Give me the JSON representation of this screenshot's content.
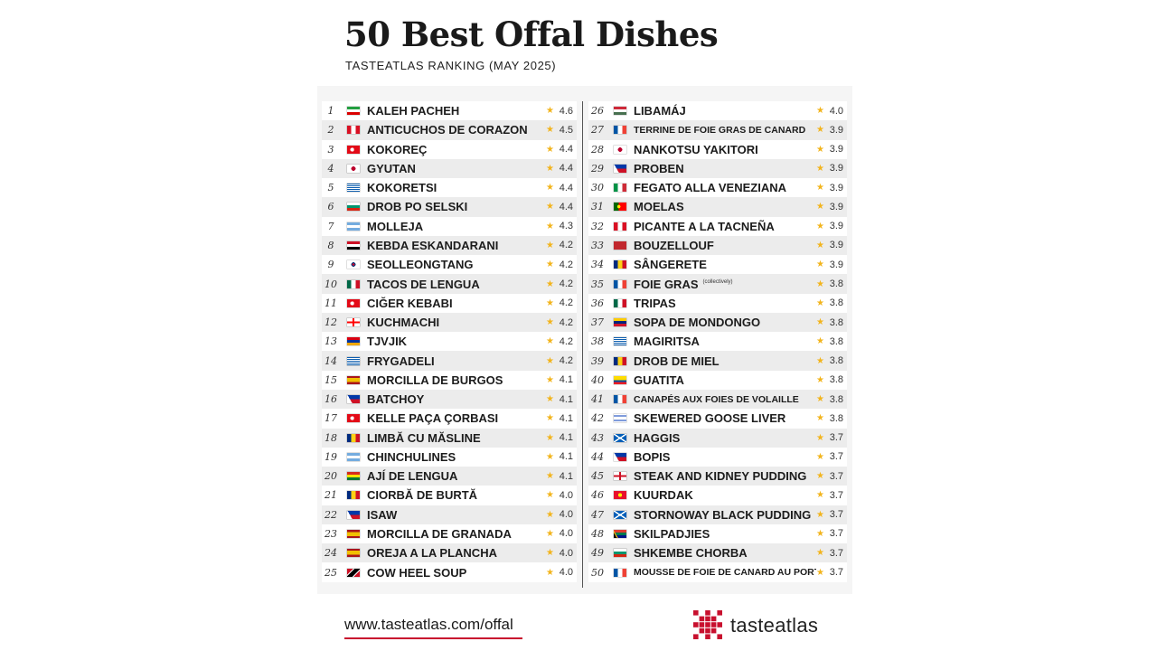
{
  "header": {
    "title": "50 Best Offal Dishes",
    "subtitle": "TASTEATLAS RANKING (MAY 2025)"
  },
  "colors": {
    "star": "#f2b41c",
    "accent": "#c8102e"
  },
  "dishes": [
    {
      "rank": "1",
      "name": "KALEH PACHEH",
      "rating": "4.6",
      "flag": "iran"
    },
    {
      "rank": "2",
      "name": "ANTICUCHOS DE CORAZON",
      "rating": "4.5",
      "flag": "peru"
    },
    {
      "rank": "3",
      "name": "KOKOREÇ",
      "rating": "4.4",
      "flag": "turkey"
    },
    {
      "rank": "4",
      "name": "GYUTAN",
      "rating": "4.4",
      "flag": "japan"
    },
    {
      "rank": "5",
      "name": "KOKORETSI",
      "rating": "4.4",
      "flag": "greece"
    },
    {
      "rank": "6",
      "name": "DROB PO SELSKI",
      "rating": "4.4",
      "flag": "bulgaria"
    },
    {
      "rank": "7",
      "name": "MOLLEJA",
      "rating": "4.3",
      "flag": "argentina"
    },
    {
      "rank": "8",
      "name": "KEBDA ESKANDARANI",
      "rating": "4.2",
      "flag": "egypt"
    },
    {
      "rank": "9",
      "name": "SEOLLEONGTANG",
      "rating": "4.2",
      "flag": "south-korea"
    },
    {
      "rank": "10",
      "name": "TACOS DE LENGUA",
      "rating": "4.2",
      "flag": "mexico"
    },
    {
      "rank": "11",
      "name": "CIĞER KEBABI",
      "rating": "4.2",
      "flag": "turkey"
    },
    {
      "rank": "12",
      "name": "KUCHMACHI",
      "rating": "4.2",
      "flag": "georgia"
    },
    {
      "rank": "13",
      "name": "TJVJIK",
      "rating": "4.2",
      "flag": "armenia"
    },
    {
      "rank": "14",
      "name": "FRYGADELI",
      "rating": "4.2",
      "flag": "greece"
    },
    {
      "rank": "15",
      "name": "MORCILLA DE BURGOS",
      "rating": "4.1",
      "flag": "spain"
    },
    {
      "rank": "16",
      "name": "BATCHOY",
      "rating": "4.1",
      "flag": "philippines"
    },
    {
      "rank": "17",
      "name": "KELLE PAÇA ÇORBASI",
      "rating": "4.1",
      "flag": "turkey"
    },
    {
      "rank": "18",
      "name": "LIMBĂ CU MĂSLINE",
      "rating": "4.1",
      "flag": "romania"
    },
    {
      "rank": "19",
      "name": "CHINCHULINES",
      "rating": "4.1",
      "flag": "argentina"
    },
    {
      "rank": "20",
      "name": "AJÍ DE LENGUA",
      "rating": "4.1",
      "flag": "bolivia"
    },
    {
      "rank": "21",
      "name": "CIORBĂ DE BURTĂ",
      "rating": "4.0",
      "flag": "romania"
    },
    {
      "rank": "22",
      "name": "ISAW",
      "rating": "4.0",
      "flag": "philippines"
    },
    {
      "rank": "23",
      "name": "MORCILLA DE GRANADA",
      "rating": "4.0",
      "flag": "spain"
    },
    {
      "rank": "24",
      "name": "OREJA A LA PLANCHA",
      "rating": "4.0",
      "flag": "spain"
    },
    {
      "rank": "25",
      "name": "COW HEEL SOUP",
      "rating": "4.0",
      "flag": "trinidad"
    },
    {
      "rank": "26",
      "name": "LIBAMÁJ",
      "rating": "4.0",
      "flag": "hungary"
    },
    {
      "rank": "27",
      "name": "TERRINE DE FOIE GRAS DE CANARD",
      "rating": "3.9",
      "flag": "france",
      "small": true
    },
    {
      "rank": "28",
      "name": "NANKOTSU YAKITORI",
      "rating": "3.9",
      "flag": "japan"
    },
    {
      "rank": "29",
      "name": "PROBEN",
      "rating": "3.9",
      "flag": "philippines"
    },
    {
      "rank": "30",
      "name": "FEGATO ALLA VENEZIANA",
      "rating": "3.9",
      "flag": "italy"
    },
    {
      "rank": "31",
      "name": "MOELAS",
      "rating": "3.9",
      "flag": "portugal"
    },
    {
      "rank": "32",
      "name": "PICANTE A LA TACNEÑA",
      "rating": "3.9",
      "flag": "peru"
    },
    {
      "rank": "33",
      "name": "BOUZELLOUF",
      "rating": "3.9",
      "flag": "morocco"
    },
    {
      "rank": "34",
      "name": "SÂNGERETE",
      "rating": "3.9",
      "flag": "romania"
    },
    {
      "rank": "35",
      "name": "FOIE GRAS",
      "note": "(collectively)",
      "rating": "3.8",
      "flag": "france"
    },
    {
      "rank": "36",
      "name": "TRIPAS",
      "rating": "3.8",
      "flag": "mexico"
    },
    {
      "rank": "37",
      "name": "SOPA DE MONDONGO",
      "rating": "3.8",
      "flag": "venezuela"
    },
    {
      "rank": "38",
      "name": "MAGIRITSA",
      "rating": "3.8",
      "flag": "greece"
    },
    {
      "rank": "39",
      "name": "DROB DE MIEL",
      "rating": "3.8",
      "flag": "romania"
    },
    {
      "rank": "40",
      "name": "GUATITA",
      "rating": "3.8",
      "flag": "ecuador"
    },
    {
      "rank": "41",
      "name": "CANAPÉS AUX FOIES DE VOLAILLE",
      "rating": "3.8",
      "flag": "france",
      "small": true
    },
    {
      "rank": "42",
      "name": "SKEWERED GOOSE LIVER",
      "rating": "3.8",
      "flag": "israel"
    },
    {
      "rank": "43",
      "name": "HAGGIS",
      "rating": "3.7",
      "flag": "scotland"
    },
    {
      "rank": "44",
      "name": "BOPIS",
      "rating": "3.7",
      "flag": "philippines"
    },
    {
      "rank": "45",
      "name": "STEAK AND KIDNEY PUDDING",
      "rating": "3.7",
      "flag": "england"
    },
    {
      "rank": "46",
      "name": "KUURDAK",
      "rating": "3.7",
      "flag": "kyrgyzstan"
    },
    {
      "rank": "47",
      "name": "STORNOWAY BLACK PUDDING",
      "rating": "3.7",
      "flag": "scotland"
    },
    {
      "rank": "48",
      "name": "SKILPADJIES",
      "rating": "3.7",
      "flag": "south-africa"
    },
    {
      "rank": "49",
      "name": "SHKEMBE CHORBA",
      "rating": "3.7",
      "flag": "bulgaria"
    },
    {
      "rank": "50",
      "name": "MOUSSE DE FOIE DE CANARD AU PORTO",
      "rating": "3.7",
      "flag": "france",
      "small": true
    }
  ],
  "footer": {
    "url": "www.tasteatlas.com/offal",
    "logo_text": "tasteatlas"
  }
}
